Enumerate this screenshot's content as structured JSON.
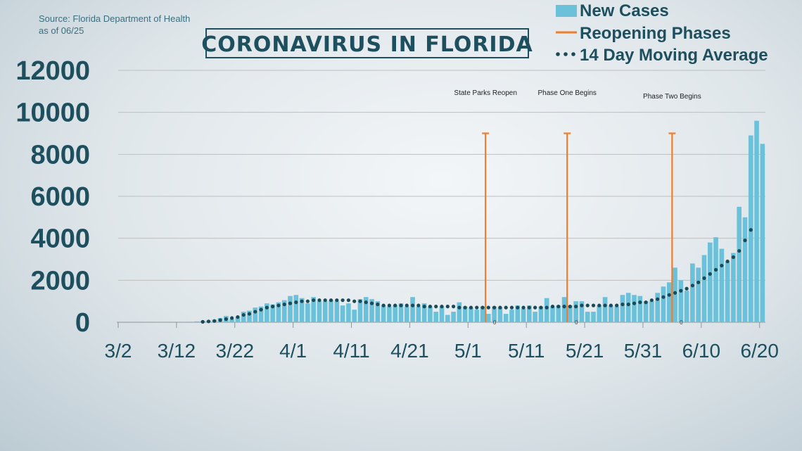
{
  "source": {
    "line1": "Source: Florida Department of Health",
    "line2": "as of 06/25"
  },
  "colors": {
    "bar": "#6cc1da",
    "phase": "#ef7d2c",
    "avg": "#1b4a57",
    "text": "#1e4f5e",
    "grid": "#bfbfbf"
  },
  "chart_data": {
    "type": "bar",
    "title": "CORONAVIRUS IN FLORIDA",
    "x_start": "3/2",
    "x_tick_labels": [
      "3/2",
      "3/12",
      "3/22",
      "4/1",
      "4/11",
      "4/21",
      "5/1",
      "5/11",
      "5/21",
      "5/31",
      "6/10",
      "6/20"
    ],
    "ylim": [
      0,
      12000
    ],
    "y_ticks": [
      0,
      2000,
      4000,
      6000,
      8000,
      10000,
      12000
    ],
    "grid": true,
    "legend_position": "top-right",
    "legend": [
      {
        "label": "New Cases",
        "kind": "bar"
      },
      {
        "label": "Reopening Phases",
        "kind": "line"
      },
      {
        "label": "14 Day Moving Average",
        "kind": "dots"
      }
    ],
    "series": [
      {
        "name": "New Cases",
        "values": [
          0,
          0,
          0,
          0,
          0,
          0,
          0,
          0,
          0,
          0,
          0,
          10,
          20,
          40,
          60,
          80,
          120,
          200,
          300,
          150,
          250,
          500,
          550,
          700,
          750,
          900,
          850,
          950,
          1050,
          1250,
          1300,
          1150,
          900,
          1200,
          1000,
          1000,
          1050,
          1000,
          800,
          900,
          600,
          1100,
          1200,
          1100,
          1000,
          800,
          750,
          800,
          900,
          750,
          1200,
          750,
          900,
          750,
          500,
          750,
          350,
          500,
          950,
          750,
          700,
          600,
          750,
          400,
          750,
          700,
          400,
          600,
          800,
          650,
          800,
          500,
          750,
          1150,
          750,
          800,
          1200,
          800,
          1000,
          1000,
          500,
          500,
          800,
          1200,
          800,
          750,
          1300,
          1400,
          1300,
          1250,
          1000,
          1000,
          1400,
          1700,
          1900,
          2600,
          2000,
          1500,
          2800,
          2600,
          3200,
          3800,
          4050,
          3500,
          2900,
          3300,
          5500,
          5000,
          8900,
          9600,
          8500
        ]
      },
      {
        "name": "14 Day Moving Average",
        "values": [
          0,
          0,
          0,
          0,
          0,
          0,
          0,
          0,
          0,
          0,
          0,
          0,
          0,
          0,
          20,
          40,
          60,
          100,
          150,
          200,
          250,
          350,
          400,
          500,
          600,
          700,
          750,
          800,
          850,
          900,
          950,
          1000,
          1000,
          1050,
          1050,
          1050,
          1050,
          1050,
          1050,
          1050,
          1000,
          1000,
          950,
          900,
          850,
          800,
          800,
          800,
          800,
          800,
          800,
          800,
          750,
          750,
          750,
          750,
          750,
          750,
          700,
          700,
          700,
          700,
          700,
          700,
          700,
          700,
          700,
          700,
          700,
          700,
          700,
          700,
          700,
          700,
          750,
          750,
          750,
          750,
          750,
          800,
          800,
          800,
          800,
          800,
          800,
          800,
          850,
          850,
          900,
          950,
          950,
          1050,
          1100,
          1200,
          1300,
          1400,
          1500,
          1600,
          1750,
          1900,
          2100,
          2300,
          2500,
          2700,
          2900,
          3100,
          3400,
          3900,
          4400
        ]
      }
    ],
    "phases": [
      {
        "date": "5/4",
        "label": "State Parks Reopen"
      },
      {
        "date": "5/18",
        "label": "Phase One Begins"
      },
      {
        "date": "6/5",
        "label": "Phase Two Begins"
      }
    ],
    "phase_line_value": 9000,
    "phase_zero_label": "0"
  }
}
